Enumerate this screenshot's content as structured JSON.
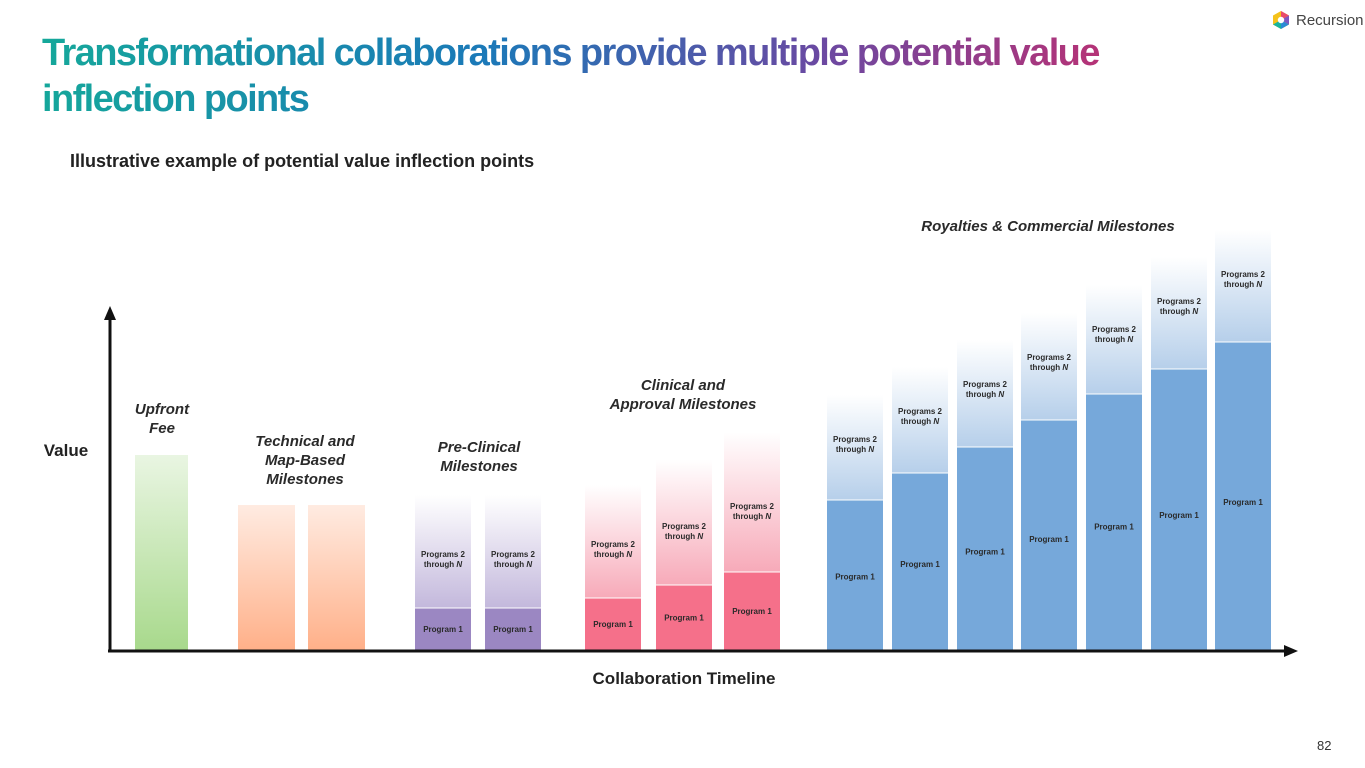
{
  "header": {
    "title": "Transformational collaborations provide multiple potential value inflection points",
    "subtitle": "Illustrative example of potential value inflection points",
    "logo_text": "Recursion",
    "page_number": "82"
  },
  "chart_data": {
    "type": "bar",
    "title": "",
    "subtitle": "Illustrative example of potential value inflection points",
    "xlabel": "Collaboration Timeline",
    "ylabel": "Value",
    "axis_ticks": false,
    "grid": false,
    "stacked": true,
    "segment_labels": {
      "program_1": "Program 1",
      "programs_2_line1": "Programs 2",
      "programs_2_line2": "through ",
      "programs_2_n": "N"
    },
    "groups": [
      {
        "label_lines": [
          "Upfront",
          "Fee"
        ],
        "kind": "single",
        "color": "#a8d98c",
        "bars": [
          {
            "total": 195
          }
        ]
      },
      {
        "label_lines": [
          "Technical and",
          "Map-Based",
          "Milestones"
        ],
        "kind": "single",
        "color": "#ffb089",
        "bars": [
          {
            "total": 145
          },
          {
            "total": 145
          }
        ]
      },
      {
        "label_lines": [
          "Pre-Clinical",
          "Milestones"
        ],
        "kind": "stacked",
        "color_p1": "#9b87c2",
        "color_p2": "#c3b8dc",
        "bars": [
          {
            "program_1": 42,
            "total": 155
          },
          {
            "program_1": 42,
            "total": 155
          }
        ]
      },
      {
        "label_lines": [
          "Clinical and",
          "Approval Milestones"
        ],
        "kind": "stacked",
        "color_p1": "#f5708a",
        "color_p2": "#f7aab9",
        "bars": [
          {
            "program_1": 52,
            "total": 165
          },
          {
            "program_1": 65,
            "total": 190
          },
          {
            "program_1": 78,
            "total": 218
          }
        ]
      },
      {
        "label_lines": [
          "Royalties & Commercial Milestones"
        ],
        "kind": "stacked",
        "color_p1": "#76a8da",
        "color_p2": "#b6cfea",
        "bars": [
          {
            "program_1": 150,
            "total": 255
          },
          {
            "program_1": 177,
            "total": 283
          },
          {
            "program_1": 203,
            "total": 310
          },
          {
            "program_1": 230,
            "total": 337
          },
          {
            "program_1": 256,
            "total": 365
          },
          {
            "program_1": 281,
            "total": 393
          },
          {
            "program_1": 308,
            "total": 420
          }
        ]
      }
    ]
  }
}
